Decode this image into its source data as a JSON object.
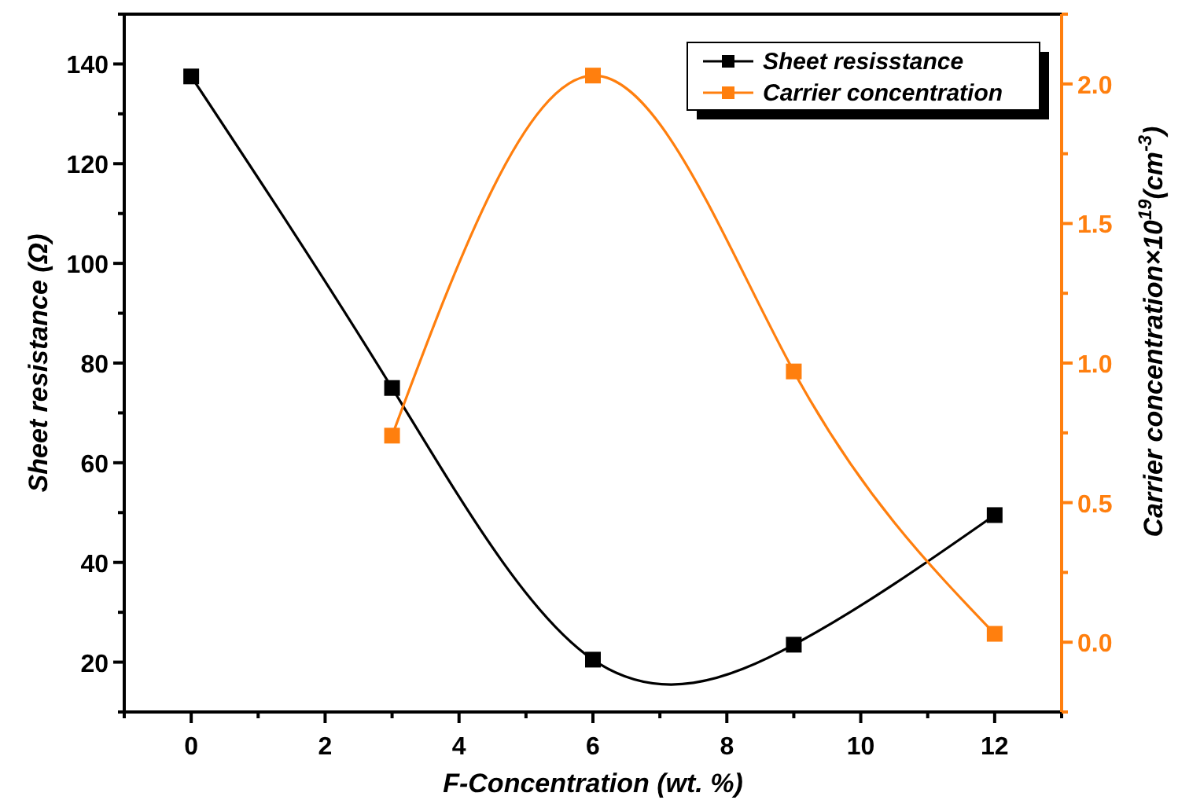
{
  "chart_data": {
    "type": "line",
    "xlabel": "F-Concentration (wt. %)",
    "ylabel": "Sheet resistance (Ω)",
    "y2label": "Carrier concentration×10$^{19}$(cm$^{-3}$)",
    "x": [
      0,
      3,
      6,
      9,
      12
    ],
    "series": [
      {
        "name": "Sheet resisstance",
        "color": "#000000",
        "values": [
          137.5,
          75,
          20.5,
          23.5,
          49.5
        ]
      },
      {
        "name": "Carrier concentration",
        "color": "#ff7f0e",
        "axis": "y2",
        "x": [
          3,
          6,
          9,
          12
        ],
        "values": [
          0.74,
          2.03,
          0.97,
          0.03
        ]
      }
    ],
    "xlim": [
      -1,
      13
    ],
    "xticks": [
      {
        "value": -1,
        "label": null
      },
      0,
      {
        "value": 1,
        "label": null
      },
      2,
      {
        "value": 3,
        "label": null
      },
      4,
      {
        "value": 5,
        "label": null
      },
      6,
      {
        "value": 7,
        "label": null
      },
      8,
      {
        "value": 9,
        "label": null
      },
      10,
      {
        "value": 11,
        "label": null
      },
      12,
      {
        "value": 13,
        "label": null
      }
    ],
    "ylim": [
      10,
      150
    ],
    "yticks": [
      {
        "value": 10,
        "label": null
      },
      20,
      {
        "value": 30,
        "label": null
      },
      40,
      {
        "value": 50,
        "label": null
      },
      60,
      {
        "value": 70,
        "label": null
      },
      80,
      {
        "value": 90,
        "label": null
      },
      100,
      {
        "value": 110,
        "label": null
      },
      120,
      {
        "value": 130,
        "label": null
      },
      140,
      {
        "value": 150,
        "label": null
      }
    ],
    "y2lim": [
      -0.25,
      2.25
    ],
    "y2ticks": [
      {
        "value": -0.25,
        "label": null
      },
      {
        "value": 0,
        "label": "0.0"
      },
      {
        "value": 0.25,
        "label": null
      },
      0.5,
      {
        "value": 0.75,
        "label": null
      },
      {
        "value": 1,
        "label": "1.0"
      },
      {
        "value": 1.25,
        "label": null
      },
      1.5,
      {
        "value": 1.75,
        "label": null
      },
      {
        "value": 2,
        "label": "2.0"
      },
      {
        "value": 2.25,
        "label": null
      }
    ],
    "marker": "square",
    "line_style": "solid",
    "legend": "top right",
    "grid": false
  }
}
